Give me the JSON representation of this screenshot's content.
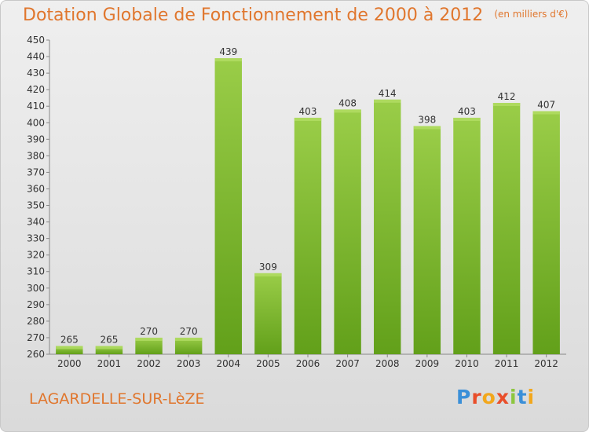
{
  "header": {
    "title": "Dotation Globale de Fonctionnement de 2000 à 2012",
    "unit": "(en milliers d'€)"
  },
  "footer": {
    "commune": "LAGARDELLE-SUR-LèZE",
    "logo_letters": [
      "P",
      "r",
      "o",
      "x",
      "i",
      "t",
      "i"
    ],
    "logo_colors": [
      "#3a8fd8",
      "#e94e2a",
      "#f2a71c",
      "#e94e2a",
      "#8dc63f",
      "#3a8fd8",
      "#f2a71c"
    ]
  },
  "colors": {
    "bar_light": "#9acd48",
    "bar_dark": "#62a01a",
    "title": "#e0762d"
  },
  "chart_data": {
    "type": "bar",
    "categories": [
      "2000",
      "2001",
      "2002",
      "2003",
      "2004",
      "2005",
      "2006",
      "2007",
      "2008",
      "2009",
      "2010",
      "2011",
      "2012"
    ],
    "values": [
      265,
      265,
      270,
      270,
      439,
      309,
      403,
      408,
      414,
      398,
      403,
      412,
      407
    ],
    "ylim": [
      260,
      450
    ],
    "ytick_step": 10,
    "grid": false
  }
}
